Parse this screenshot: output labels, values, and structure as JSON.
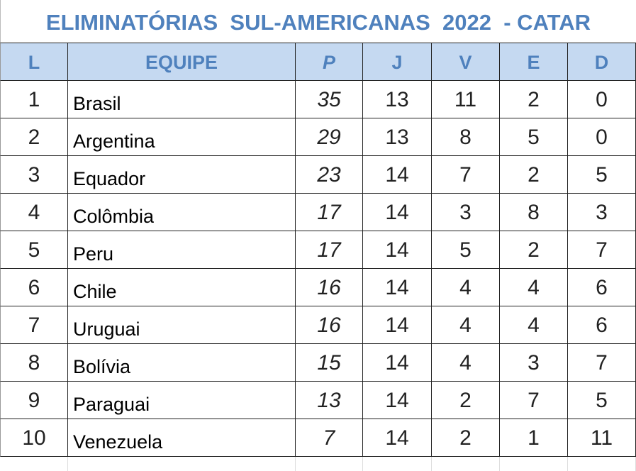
{
  "header": {
    "title": "ELIMINATÓRIAS  SUL-AMERICANAS  2022  - CATAR"
  },
  "table": {
    "columns": [
      "L",
      "EQUIPE",
      "P",
      "J",
      "V",
      "E",
      "D"
    ],
    "rows": [
      [
        1,
        "Brasil",
        35,
        13,
        11,
        2,
        0
      ],
      [
        2,
        "Argentina",
        29,
        13,
        8,
        5,
        0
      ],
      [
        3,
        "Equador",
        23,
        14,
        7,
        2,
        5
      ],
      [
        4,
        "Colômbia",
        17,
        14,
        3,
        8,
        3
      ],
      [
        5,
        "Peru",
        17,
        14,
        5,
        2,
        7
      ],
      [
        6,
        "Chile",
        16,
        14,
        4,
        4,
        6
      ],
      [
        7,
        "Uruguai",
        16,
        14,
        4,
        4,
        6
      ],
      [
        8,
        "Bolívia",
        15,
        14,
        4,
        3,
        7
      ],
      [
        9,
        "Paraguai",
        13,
        14,
        2,
        7,
        5
      ],
      [
        10,
        "Venezuela",
        7,
        14,
        2,
        1,
        11
      ]
    ]
  }
}
